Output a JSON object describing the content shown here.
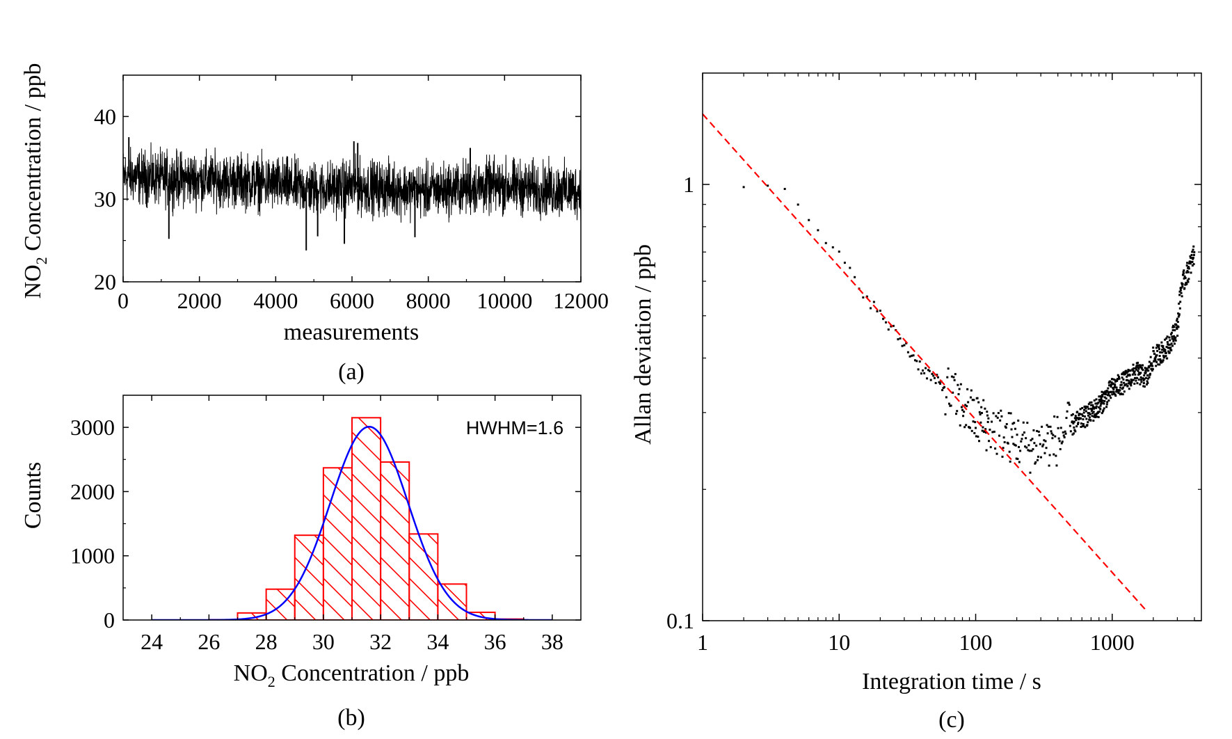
{
  "chart_data": [
    {
      "panel": "(a)",
      "type": "line",
      "xlabel": "measurements",
      "ylabel": "NO",
      "ylabel_sub": "2",
      "ylabel_rest": " Concentration / ppb",
      "xlim": [
        0,
        12000
      ],
      "ylim": [
        20,
        45
      ],
      "xticks": [
        0,
        2000,
        4000,
        6000,
        8000,
        10000,
        12000
      ],
      "yticks": [
        20,
        30,
        40
      ],
      "series": [
        {
          "trend_x": [
            0,
            1000,
            2000,
            3000,
            4000,
            5000,
            6000,
            7000,
            8000,
            9000,
            10000,
            11000,
            12000
          ],
          "trend_y": [
            32.8,
            32.5,
            32.4,
            32.2,
            31.8,
            31.2,
            31.5,
            31.3,
            31.0,
            31.4,
            31.6,
            31.2,
            31.0
          ],
          "noise_sd": 1.6,
          "spikes_x": [
            150,
            1200,
            4800,
            5100,
            5800,
            6050,
            6150,
            7650,
            9100
          ],
          "spikes_y": [
            37.5,
            25.2,
            23.8,
            25.5,
            24.6,
            37.0,
            36.8,
            25.4,
            36.2
          ]
        }
      ]
    },
    {
      "panel": "(b)",
      "type": "bar",
      "xlabel": "NO",
      "xlabel_sub": "2",
      "xlabel_rest": " Concentration / ppb",
      "ylabel": "Counts",
      "xlim": [
        23,
        39
      ],
      "ylim": [
        0,
        3500
      ],
      "xticks": [
        24,
        26,
        28,
        30,
        32,
        34,
        36,
        38
      ],
      "yticks": [
        0,
        1000,
        2000,
        3000
      ],
      "bins_left": [
        24,
        25,
        26,
        27,
        28,
        29,
        30,
        31,
        32,
        33,
        34,
        35,
        36,
        37
      ],
      "values": [
        0,
        0,
        5,
        110,
        480,
        1320,
        2370,
        3150,
        2460,
        1340,
        560,
        120,
        15,
        0
      ],
      "gaussian_fit": {
        "center": 31.6,
        "hwhm": 1.6,
        "amplitude": 3010
      },
      "annotation": "HWHM=1.6"
    },
    {
      "panel": "(c)",
      "type": "scatter",
      "xlabel": "Integration time / s",
      "ylabel": "Allan deviation / ppb",
      "xscale": "log",
      "yscale": "log",
      "xlim": [
        1,
        4500
      ],
      "ylim": [
        0.1,
        1.8
      ],
      "xticks": [
        1,
        10,
        100,
        1000
      ],
      "xtick_labels": [
        "1",
        "10",
        "100",
        "1000"
      ],
      "yticks": [
        0.1,
        1
      ],
      "ytick_labels": [
        "0.1",
        "1"
      ],
      "reference_line": {
        "name": "",
        "x": [
          1,
          1800
        ],
        "y": [
          1.45,
          0.105
        ],
        "style": "dashed",
        "color": "#ff0000"
      },
      "series": [
        {
          "curve_x": [
            2,
            3,
            4,
            5,
            7,
            10,
            15,
            20,
            30,
            40,
            60,
            80,
            100,
            150,
            200,
            250,
            300,
            400,
            500,
            600,
            700,
            800,
            1000,
            1200,
            1500,
            1800,
            2000,
            2500,
            3000,
            3200,
            3500,
            3800,
            4000
          ],
          "curve_y": [
            1.0,
            0.98,
            0.95,
            0.88,
            0.78,
            0.68,
            0.57,
            0.5,
            0.43,
            0.38,
            0.34,
            0.31,
            0.29,
            0.27,
            0.26,
            0.25,
            0.255,
            0.26,
            0.28,
            0.29,
            0.3,
            0.31,
            0.34,
            0.35,
            0.37,
            0.36,
            0.4,
            0.42,
            0.47,
            0.58,
            0.62,
            0.66,
            0.7
          ]
        }
      ]
    }
  ],
  "labels": {
    "a": "(a)",
    "b": "(b)",
    "c": "(c)"
  },
  "colors": {
    "histogram": "#ff0000",
    "fit": "#0000ff",
    "reference": "#ff0000",
    "data": "#000000"
  }
}
